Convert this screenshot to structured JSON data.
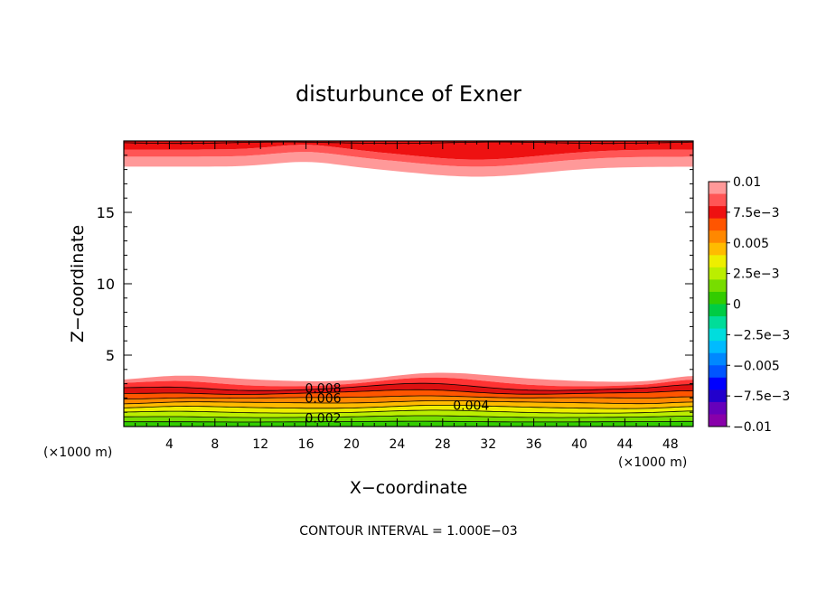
{
  "chart_data": {
    "type": "contour",
    "title": "disturbunce of Exner",
    "xlabel": "X−coordinate",
    "ylabel": "Z−coordinate",
    "x_unit_left": "(×1000 m)",
    "x_unit_right": "(×1000 m)",
    "footer": "CONTOUR INTERVAL = 1.000E−03",
    "xlim": [
      0,
      50
    ],
    "ylim": [
      0,
      20
    ],
    "x_ticks": [
      4,
      8,
      12,
      16,
      20,
      24,
      28,
      32,
      36,
      40,
      44,
      48
    ],
    "x_tick_labels": [
      "4",
      "8",
      "12",
      "16",
      "20",
      "24",
      "28",
      "32",
      "36",
      "40",
      "44",
      "48"
    ],
    "y_ticks": [
      5,
      10,
      15
    ],
    "y_tick_labels": [
      "5",
      "10",
      "15"
    ],
    "contour_interval": 0.001,
    "contour_labels": [
      {
        "text": "0.008",
        "x": 17.5,
        "y": 2.7
      },
      {
        "text": "0.006",
        "x": 17.5,
        "y": 2.0
      },
      {
        "text": "0.004",
        "x": 30.5,
        "y": 1.5
      },
      {
        "text": "0.002",
        "x": 17.5,
        "y": 0.6
      }
    ],
    "colorbar": {
      "min": -0.01,
      "max": 0.01,
      "labels": [
        "0.01",
        "7.5e−3",
        "0.005",
        "2.5e−3",
        "0",
        "−2.5e−3",
        "−0.005",
        "−7.5e−3",
        "−0.01"
      ],
      "colors_top_to_bottom": [
        "#ff9999",
        "#ff5555",
        "#ee1111",
        "#ff5500",
        "#ff8800",
        "#ffbb00",
        "#eeee00",
        "#bbee00",
        "#77dd00",
        "#33cc00",
        "#00cc44",
        "#00dd99",
        "#00dddd",
        "#00bbff",
        "#0088ff",
        "#0055ff",
        "#0000ff",
        "#2200cc",
        "#6600bb",
        "#8800aa"
      ]
    }
  }
}
